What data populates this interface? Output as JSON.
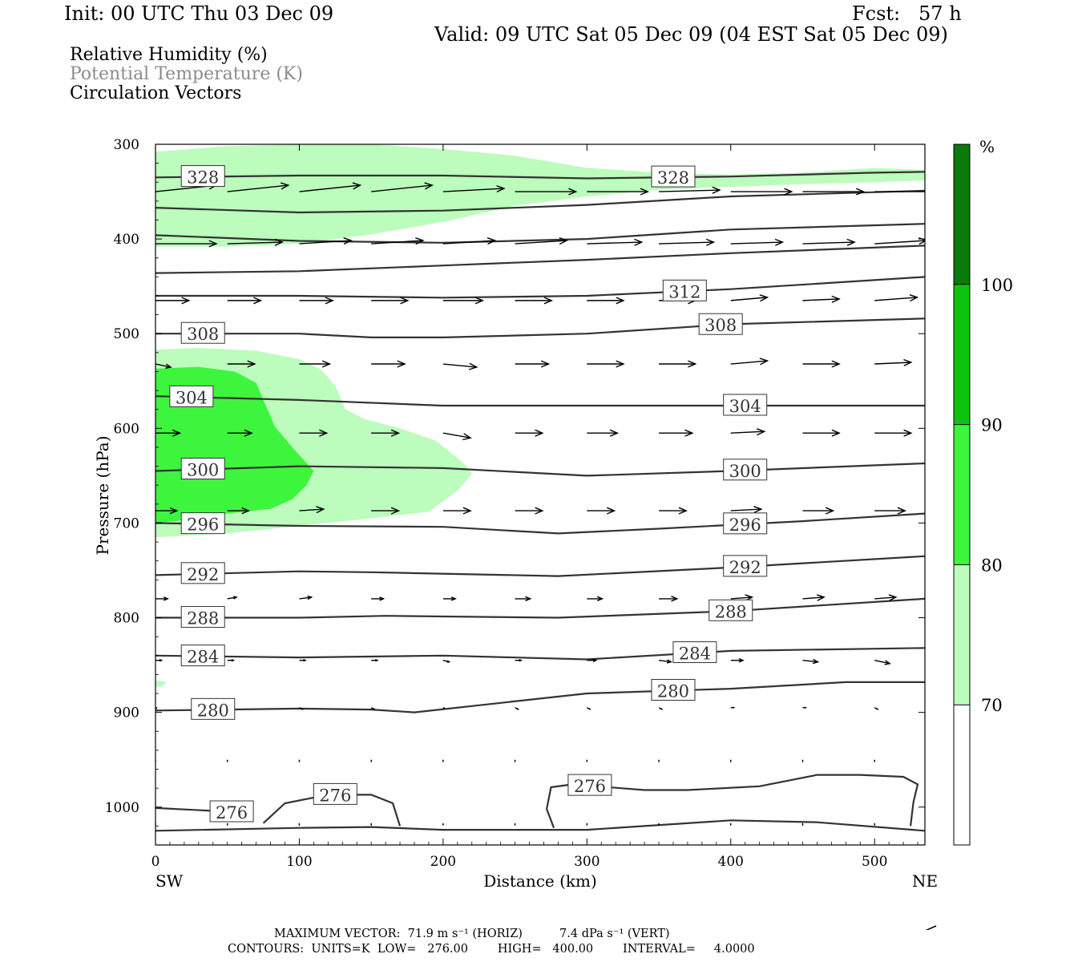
{
  "header": {
    "init": "Init: 00 UTC Thu 03 Dec 09",
    "fcst": "Fcst:   57 h",
    "valid": "Valid: 09 UTC Sat 05 Dec 09 (04 EST Sat 05 Dec 09)"
  },
  "legend": {
    "line1": "Relative Humidity (%)",
    "line2": "Potential Temperature (K)",
    "line3": "Circulation Vectors"
  },
  "footer": {
    "max_vector": "MAXIMUM VECTOR:  71.9 m s⁻¹ (HORIZ)          7.4 dPa s⁻¹ (VERT)",
    "contours": "CONTOURS:  UNITS=K  LOW=   276.00        HIGH=   400.00        INTERVAL=     4.0000"
  },
  "colors": {
    "rh70": "#bcfcbc",
    "rh80": "#3ef53e",
    "rh90": "#0ec30e",
    "rh100": "#0b7a0b",
    "contour": "#333333",
    "legend_gray": "#8c8c8c"
  },
  "chart_data": {
    "type": "cross-section",
    "xlabel": "Distance (km)",
    "ylabel": "Pressure (hPa)",
    "xlim": [
      0,
      535
    ],
    "ylim": [
      1040,
      300
    ],
    "xticks": [
      0,
      100,
      200,
      300,
      400,
      500
    ],
    "yticks": [
      300,
      400,
      500,
      600,
      700,
      800,
      900,
      1000
    ],
    "x_left_label": "SW",
    "x_right_label": "NE",
    "colorbar": {
      "unit": "%",
      "levels": [
        70,
        80,
        90,
        100
      ],
      "colors": [
        "#bcfcbc",
        "#3ef53e",
        "#0ec30e",
        "#0b7a0b"
      ]
    },
    "rh_regions": [
      {
        "level": 70,
        "polygon": [
          [
            0,
            308
          ],
          [
            50,
            302
          ],
          [
            100,
            300
          ],
          [
            150,
            300
          ],
          [
            200,
            305
          ],
          [
            250,
            312
          ],
          [
            300,
            325
          ],
          [
            350,
            330
          ],
          [
            400,
            332
          ],
          [
            450,
            330
          ],
          [
            500,
            325
          ],
          [
            535,
            327
          ],
          [
            535,
            338
          ],
          [
            500,
            340
          ],
          [
            450,
            342
          ],
          [
            400,
            345
          ],
          [
            350,
            348
          ],
          [
            300,
            355
          ],
          [
            250,
            365
          ],
          [
            200,
            382
          ],
          [
            150,
            395
          ],
          [
            100,
            405
          ],
          [
            50,
            408
          ],
          [
            0,
            408
          ]
        ]
      },
      {
        "level": 70,
        "polygon": [
          [
            0,
            517
          ],
          [
            30,
            515
          ],
          [
            70,
            518
          ],
          [
            100,
            527
          ],
          [
            115,
            538
          ],
          [
            125,
            555
          ],
          [
            132,
            580
          ],
          [
            145,
            590
          ],
          [
            170,
            600
          ],
          [
            195,
            613
          ],
          [
            215,
            638
          ],
          [
            220,
            648
          ],
          [
            210,
            666
          ],
          [
            190,
            688
          ],
          [
            150,
            695
          ],
          [
            100,
            703
          ],
          [
            50,
            711
          ],
          [
            0,
            715
          ]
        ]
      },
      {
        "level": 80,
        "polygon": [
          [
            0,
            537
          ],
          [
            30,
            535
          ],
          [
            55,
            540
          ],
          [
            70,
            552
          ],
          [
            75,
            570
          ],
          [
            83,
            598
          ],
          [
            95,
            620
          ],
          [
            110,
            645
          ],
          [
            105,
            660
          ],
          [
            95,
            675
          ],
          [
            80,
            685
          ],
          [
            50,
            690
          ],
          [
            20,
            697
          ],
          [
            0,
            700
          ]
        ]
      },
      {
        "level": 70,
        "polygon": [
          [
            0,
            866
          ],
          [
            8,
            868
          ],
          [
            4,
            873
          ],
          [
            0,
            873
          ]
        ]
      }
    ],
    "isentropes": [
      {
        "theta": 328,
        "points": [
          [
            0,
            335
          ],
          [
            100,
            333
          ],
          [
            200,
            333
          ],
          [
            300,
            336
          ],
          [
            400,
            334
          ],
          [
            500,
            330
          ],
          [
            535,
            329
          ]
        ],
        "label_x": 33,
        "label2_x": 360
      },
      {
        "theta": null,
        "points": [
          [
            0,
            367
          ],
          [
            100,
            372
          ],
          [
            200,
            370
          ],
          [
            300,
            364
          ],
          [
            400,
            355
          ],
          [
            535,
            349
          ]
        ]
      },
      {
        "theta": null,
        "points": [
          [
            0,
            396
          ],
          [
            100,
            402
          ],
          [
            200,
            404
          ],
          [
            300,
            400
          ],
          [
            400,
            390
          ],
          [
            535,
            384
          ]
        ]
      },
      {
        "theta": null,
        "points": [
          [
            0,
            436
          ],
          [
            100,
            434
          ],
          [
            200,
            428
          ],
          [
            300,
            422
          ],
          [
            400,
            415
          ],
          [
            535,
            407
          ]
        ]
      },
      {
        "theta": 312,
        "points": [
          [
            0,
            460
          ],
          [
            100,
            460
          ],
          [
            200,
            462
          ],
          [
            300,
            460
          ],
          [
            400,
            453
          ],
          [
            535,
            440
          ]
        ],
        "label_x": 368
      },
      {
        "theta": 308,
        "points": [
          [
            0,
            500
          ],
          [
            100,
            500
          ],
          [
            150,
            504
          ],
          [
            200,
            504
          ],
          [
            300,
            500
          ],
          [
            400,
            490
          ],
          [
            535,
            484
          ]
        ],
        "label_x": 33,
        "label2_x": 393
      },
      {
        "theta": 304,
        "points": [
          [
            0,
            566
          ],
          [
            100,
            570
          ],
          [
            200,
            576
          ],
          [
            300,
            576
          ],
          [
            400,
            576
          ],
          [
            535,
            576
          ]
        ],
        "label_x": 25,
        "label2_x": 410
      },
      {
        "theta": 300,
        "points": [
          [
            0,
            645
          ],
          [
            100,
            640
          ],
          [
            200,
            642
          ],
          [
            300,
            650
          ],
          [
            400,
            645
          ],
          [
            535,
            637
          ]
        ],
        "label_x": 33,
        "label2_x": 410
      },
      {
        "theta": 296,
        "points": [
          [
            0,
            700
          ],
          [
            100,
            703
          ],
          [
            200,
            704
          ],
          [
            280,
            711
          ],
          [
            350,
            706
          ],
          [
            450,
            698
          ],
          [
            535,
            690
          ]
        ],
        "label_x": 33,
        "label2_x": 410
      },
      {
        "theta": 292,
        "points": [
          [
            0,
            755
          ],
          [
            100,
            751
          ],
          [
            150,
            752
          ],
          [
            280,
            756
          ],
          [
            400,
            747
          ],
          [
            535,
            735
          ]
        ],
        "label_x": 33,
        "label2_x": 410
      },
      {
        "theta": 288,
        "points": [
          [
            0,
            800
          ],
          [
            100,
            800
          ],
          [
            160,
            798
          ],
          [
            280,
            800
          ],
          [
            400,
            793
          ],
          [
            535,
            780
          ]
        ],
        "label_x": 33,
        "label2_x": 400
      },
      {
        "theta": 284,
        "points": [
          [
            0,
            840
          ],
          [
            100,
            842
          ],
          [
            200,
            840
          ],
          [
            300,
            844
          ],
          [
            400,
            835
          ],
          [
            535,
            832
          ]
        ],
        "label_x": 33,
        "label2_x": 375
      },
      {
        "theta": 280,
        "points": [
          [
            0,
            898
          ],
          [
            100,
            896
          ],
          [
            150,
            897
          ],
          [
            180,
            900
          ],
          [
            300,
            880
          ],
          [
            400,
            875
          ],
          [
            480,
            868
          ],
          [
            535,
            868
          ]
        ],
        "label_x": 40,
        "label2_x": 360
      },
      {
        "theta": 276,
        "points": [
          [
            0,
            1001
          ],
          [
            40,
            1004
          ],
          [
            60,
            1006
          ]
        ],
        "label_x": 53
      },
      {
        "theta": null,
        "points": [
          [
            75,
            1017
          ],
          [
            90,
            996
          ],
          [
            120,
            987
          ],
          [
            150,
            987
          ],
          [
            165,
            996
          ],
          [
            170,
            1020
          ]
        ],
        "label_x": 125,
        "label_theta": 276
      },
      {
        "theta": null,
        "points": [
          [
            277,
            1022
          ],
          [
            272,
            1002
          ],
          [
            275,
            979
          ],
          [
            290,
            976
          ],
          [
            340,
            982
          ],
          [
            370,
            982
          ],
          [
            420,
            978
          ],
          [
            460,
            966
          ],
          [
            490,
            966
          ],
          [
            520,
            968
          ],
          [
            530,
            976
          ],
          [
            527,
            995
          ],
          [
            525,
            1020
          ]
        ],
        "label_x": 302,
        "label_theta": 276
      },
      {
        "theta": null,
        "points": [
          [
            0,
            1025
          ],
          [
            100,
            1022
          ],
          [
            150,
            1021
          ],
          [
            200,
            1024
          ],
          [
            300,
            1024
          ],
          [
            400,
            1014
          ],
          [
            460,
            1016
          ],
          [
            535,
            1025
          ]
        ]
      }
    ],
    "vectors": [
      {
        "p": 350,
        "u": [
          40,
          40,
          40,
          40,
          40,
          40,
          40,
          40,
          40,
          40,
          40
        ],
        "w": [
          -4,
          -4,
          -4,
          -4,
          -2,
          0,
          0,
          -1,
          0,
          0,
          0
        ]
      },
      {
        "p": 405,
        "u": [
          40,
          36,
          34,
          34,
          34,
          34,
          36,
          36,
          34,
          34,
          34
        ],
        "w": [
          0,
          -1,
          -2,
          -2,
          -2,
          -2,
          -1,
          -1,
          -1,
          -1,
          -2
        ]
      },
      {
        "p": 465,
        "u": [
          22,
          22,
          22,
          24,
          26,
          24,
          24,
          24,
          24,
          24,
          28
        ],
        "w": [
          0,
          0,
          0,
          0,
          0,
          0,
          0,
          0,
          -2,
          -1,
          -2
        ]
      },
      {
        "p": 532,
        "u": [
          10,
          18,
          20,
          22,
          22,
          22,
          24,
          24,
          24,
          24,
          24
        ],
        "w": [
          2,
          0,
          0,
          0,
          2,
          0,
          0,
          0,
          -2,
          0,
          -1
        ]
      },
      {
        "p": 605,
        "u": [
          16,
          16,
          18,
          18,
          18,
          18,
          20,
          22,
          22,
          24,
          24
        ],
        "w": [
          0,
          0,
          0,
          0,
          3,
          0,
          0,
          0,
          -1,
          0,
          0
        ]
      },
      {
        "p": 687,
        "u": [
          14,
          14,
          16,
          18,
          18,
          18,
          18,
          18,
          20,
          20,
          20
        ],
        "w": [
          0,
          0,
          -1,
          0,
          0,
          0,
          0,
          0,
          -1,
          0,
          0
        ]
      },
      {
        "p": 780,
        "u": [
          8,
          6,
          8,
          8,
          8,
          10,
          10,
          12,
          14,
          14,
          14
        ],
        "w": [
          0,
          -1,
          -1,
          0,
          0,
          0,
          0,
          0,
          -1,
          -1,
          -1
        ]
      },
      {
        "p": 845,
        "u": [
          4,
          4,
          4,
          4,
          4,
          4,
          6,
          8,
          8,
          10,
          10
        ],
        "w": [
          0,
          0,
          0,
          0,
          1,
          0,
          0,
          1,
          0,
          1,
          2
        ]
      },
      {
        "p": 895,
        "u": [
          0,
          0,
          2,
          2,
          0,
          2,
          2,
          2,
          2,
          2,
          2
        ],
        "w": [
          0,
          0,
          1,
          1,
          0,
          1,
          1,
          1,
          0,
          0,
          1
        ]
      },
      {
        "p": 950,
        "u": [
          0,
          0,
          0,
          0,
          0,
          0,
          0,
          0,
          0,
          0,
          0
        ],
        "w": [
          1,
          1,
          1,
          1,
          1,
          1,
          1,
          1,
          1,
          1,
          1
        ]
      },
      {
        "p": 1017,
        "u": [
          0,
          0,
          0,
          0,
          0,
          0,
          0,
          0,
          0,
          0,
          0
        ],
        "w": [
          1,
          1,
          1,
          1,
          1,
          1,
          1,
          1,
          1,
          1,
          1
        ]
      }
    ]
  }
}
